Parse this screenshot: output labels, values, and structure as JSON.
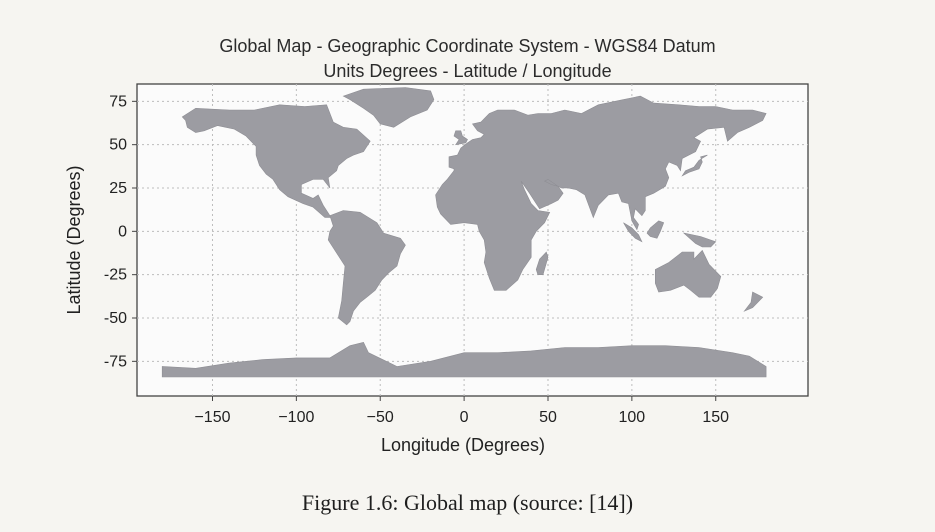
{
  "map": {
    "title_line1": "Global Map - Geographic Coordinate System - WGS84 Datum",
    "title_line2": "Units Degrees - Latitude / Longitude",
    "xlabel": "Longitude (Degrees)",
    "ylabel": "Latitude (Degrees)"
  },
  "chart_data": {
    "type": "map",
    "xlim": [
      -195,
      205
    ],
    "ylim": [
      -95,
      85
    ],
    "xticks": [
      -150,
      -100,
      -50,
      0,
      50,
      100,
      150
    ],
    "yticks": [
      75,
      50,
      25,
      0,
      -25,
      -50,
      -75
    ],
    "xtick_labels": [
      "−150",
      "−100",
      "−50",
      "0",
      "50",
      "100",
      "150"
    ],
    "ytick_labels": [
      "75",
      "50",
      "25",
      "0",
      "-25",
      "-50",
      "-75"
    ],
    "grid": true,
    "land_color": "#9c9ca2",
    "grid_color": "#bdbdbd"
  },
  "caption": "Figure 1.6: Global map (source: [14])"
}
